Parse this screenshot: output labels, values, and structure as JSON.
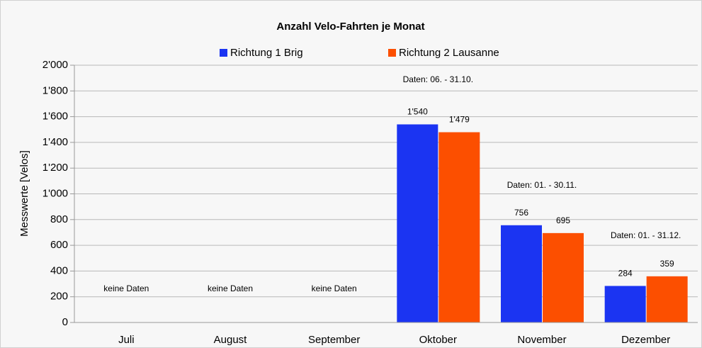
{
  "chart_data": {
    "type": "bar",
    "title": "Anzahl Velo-Fahrten je Monat",
    "y_label": "Messwerte [Velos]",
    "categories": [
      "Juli",
      "August",
      "September",
      "Oktober",
      "November",
      "Dezember"
    ],
    "series": [
      {
        "name": "Richtung 1 Brig",
        "color": "#1b34f2",
        "values": [
          null,
          null,
          null,
          1540,
          756,
          284
        ],
        "value_labels": [
          null,
          null,
          null,
          "1'540",
          "756",
          "284"
        ]
      },
      {
        "name": "Richtung 2 Lausanne",
        "color": "#fc4f00",
        "values": [
          null,
          null,
          null,
          1479,
          695,
          359
        ],
        "value_labels": [
          null,
          null,
          null,
          "1'479",
          "695",
          "359"
        ]
      }
    ],
    "annotations": [
      "keine Daten",
      "keine Daten",
      "keine Daten",
      "Daten: 06. - 31.10.",
      "Daten: 01. - 30.11.",
      "Daten: 01. - 31.12."
    ],
    "ylim": [
      0,
      2000
    ],
    "yticks": [
      0,
      200,
      400,
      600,
      800,
      {
        "value": 1000,
        "label": "1'000"
      },
      {
        "value": 1200,
        "label": "1'200"
      },
      {
        "value": 1400,
        "label": "1'400"
      },
      {
        "value": 1600,
        "label": "1'600"
      },
      {
        "value": 1800,
        "label": "1'800"
      },
      {
        "value": 2000,
        "label": "2'000"
      }
    ],
    "grid": true,
    "legend": "top"
  }
}
